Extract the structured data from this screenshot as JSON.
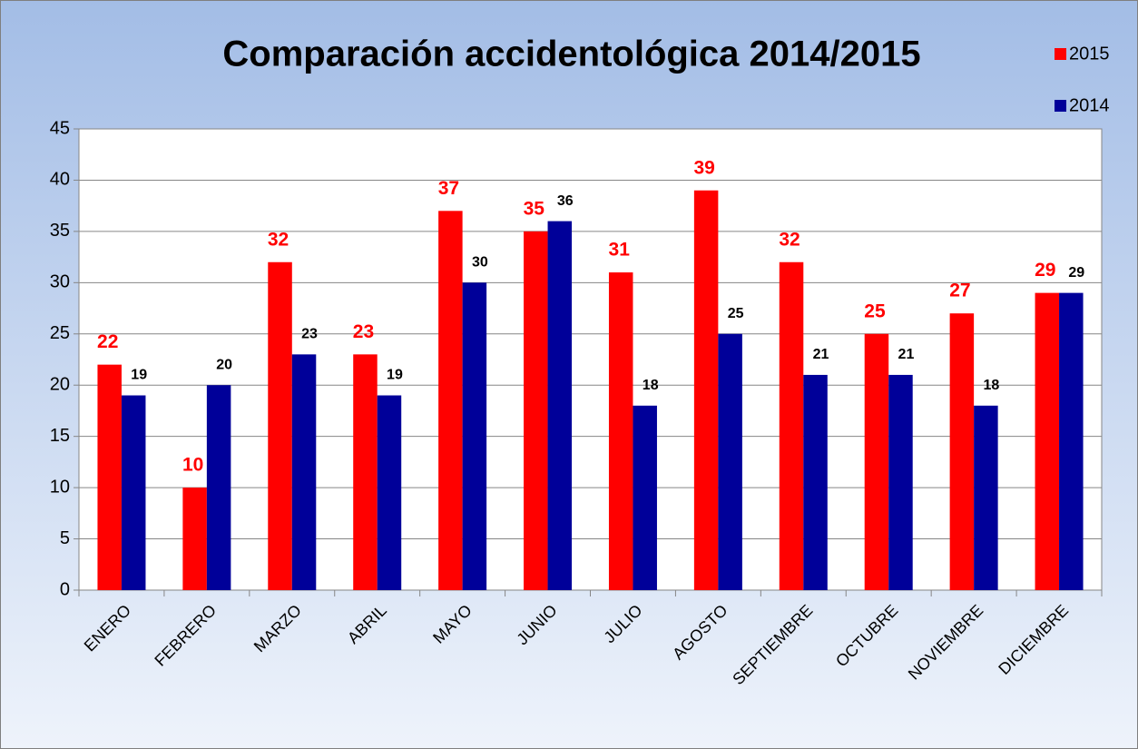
{
  "chart_data": {
    "type": "bar",
    "title": "Comparación accidentológica 2014/2015",
    "categories": [
      "ENERO",
      "FEBRERO",
      "MARZO",
      "ABRIL",
      "MAYO",
      "JUNIO",
      "JULIO",
      "AGOSTO",
      "SEPTIEMBRE",
      "OCTUBRE",
      "NOVIEMBRE",
      "DICIEMBRE"
    ],
    "series": [
      {
        "name": "2015",
        "color": "#ff0000",
        "label_color": "#ff0000",
        "values": [
          22,
          10,
          32,
          23,
          37,
          35,
          31,
          39,
          32,
          25,
          27,
          29
        ]
      },
      {
        "name": "2014",
        "color": "#000099",
        "label_color": "#000000",
        "values": [
          19,
          20,
          23,
          19,
          30,
          36,
          18,
          25,
          21,
          21,
          18,
          29
        ]
      }
    ],
    "ylim": [
      0,
      45
    ],
    "yticks": [
      0,
      5,
      10,
      15,
      20,
      25,
      30,
      35,
      40,
      45
    ],
    "grid": true,
    "legend": "top-right"
  }
}
